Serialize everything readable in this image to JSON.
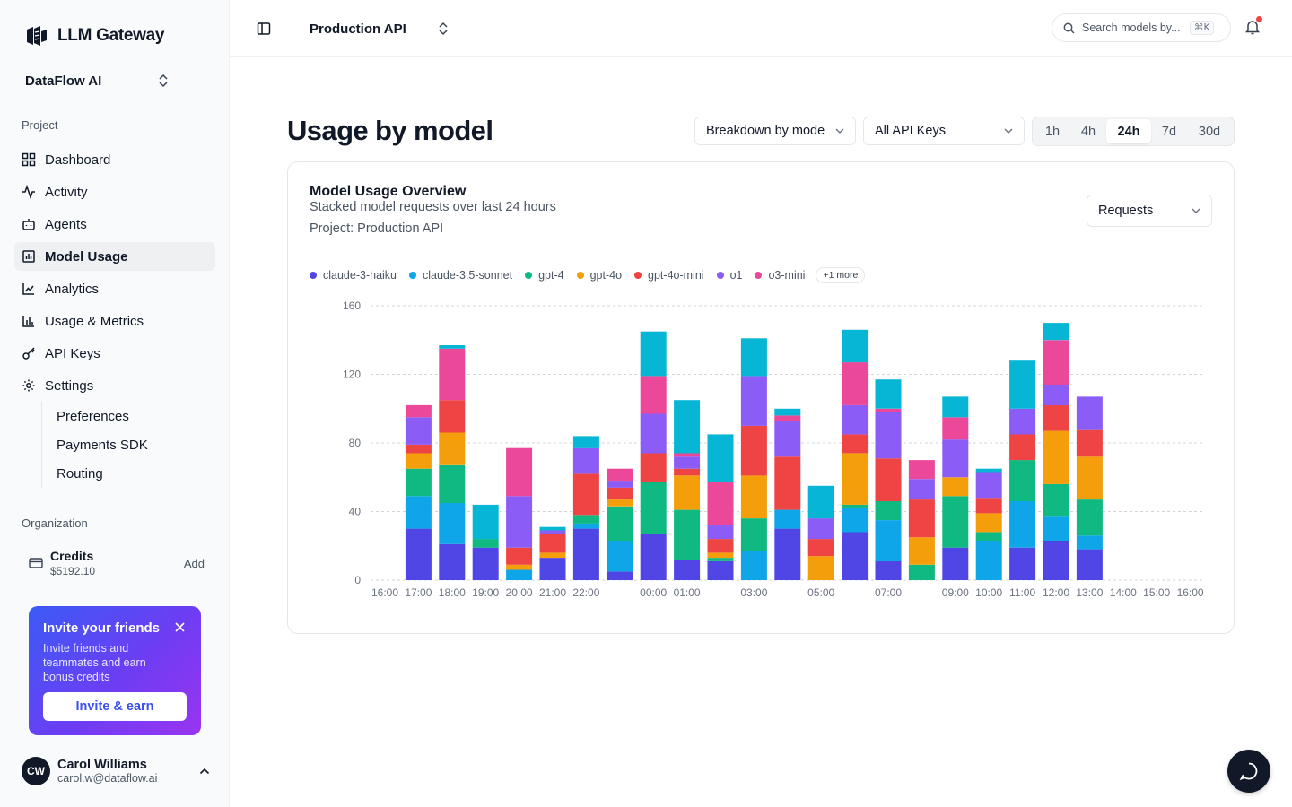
{
  "brand": {
    "name": "LLM Gateway",
    "icon": "gateway-logo-icon"
  },
  "org": {
    "name": "DataFlow AI"
  },
  "sidebar": {
    "project_label": "Project",
    "items": [
      {
        "label": "Dashboard",
        "icon": "grid-icon"
      },
      {
        "label": "Activity",
        "icon": "activity-icon"
      },
      {
        "label": "Agents",
        "icon": "bot-icon"
      },
      {
        "label": "Model Usage",
        "icon": "bar-chart-icon",
        "active": true
      },
      {
        "label": "Analytics",
        "icon": "line-chart-icon"
      },
      {
        "label": "Usage & Metrics",
        "icon": "bar-chart-2-icon"
      },
      {
        "label": "API Keys",
        "icon": "key-icon"
      },
      {
        "label": "Settings",
        "icon": "gear-icon"
      }
    ],
    "settings_sub": [
      "Preferences",
      "Payments SDK",
      "Routing"
    ],
    "org_label": "Organization",
    "credits": {
      "title": "Credits",
      "value": "$5192.10",
      "action": "Add"
    },
    "invite": {
      "title": "Invite your friends",
      "text": "Invite friends and teammates and earn bonus credits",
      "button": "Invite & earn"
    },
    "user": {
      "initials": "CW",
      "name": "Carol Williams",
      "email": "carol.w@dataflow.ai"
    }
  },
  "header": {
    "project": "Production API",
    "search_placeholder": "Search models by...",
    "search_shortcut": "⌘K"
  },
  "main": {
    "title": "Usage by model",
    "breakdown": "Breakdown by model",
    "api_keys": "All API Keys",
    "ranges": [
      "1h",
      "4h",
      "24h",
      "7d",
      "30d"
    ],
    "active_range": "24h"
  },
  "card": {
    "title": "Model Usage Overview",
    "subtitle": "Stacked model requests over last 24 hours",
    "project_line": "Project: Production API",
    "metric": "Requests",
    "more_label": "+1 more"
  },
  "chart_data": {
    "type": "bar",
    "stacked": true,
    "ylim": [
      0,
      160
    ],
    "yticks": [
      0,
      40,
      80,
      120,
      160
    ],
    "grid": true,
    "legend_position": "top-left",
    "tick_labels": [
      "16:00",
      "17:00",
      "18:00",
      "19:00",
      "20:00",
      "21:00",
      "22:00",
      "00:00",
      "01:00",
      "03:00",
      "05:00",
      "07:00",
      "09:00",
      "10:00",
      "11:00",
      "12:00",
      "13:00",
      "14:00",
      "15:00",
      "16:00"
    ],
    "tick_slots": [
      0,
      1,
      2,
      3,
      4,
      5,
      6,
      8,
      9,
      11,
      13,
      15,
      17,
      18,
      19,
      20,
      21,
      22,
      23,
      24
    ],
    "slots": 25,
    "bar_slots": [
      1,
      2,
      3,
      4,
      5,
      6,
      7,
      8,
      9,
      10,
      11,
      12,
      13,
      14,
      15,
      16,
      17,
      18,
      19,
      20,
      21
    ],
    "series": [
      {
        "name": "claude-3-haiku",
        "color": "#4f46e5",
        "values": [
          30,
          21,
          19,
          0,
          13,
          30,
          5,
          27,
          12,
          11,
          0,
          30,
          0,
          28,
          11,
          0,
          19,
          0,
          19,
          23,
          18
        ]
      },
      {
        "name": "claude-3.5-sonnet",
        "color": "#0ea5e9",
        "values": [
          19,
          24,
          0,
          6,
          0,
          3,
          18,
          0,
          0,
          0,
          17,
          11,
          0,
          14,
          24,
          0,
          0,
          23,
          27,
          14,
          8
        ]
      },
      {
        "name": "gpt-4",
        "color": "#10b981",
        "values": [
          16,
          22,
          5,
          0,
          0,
          5,
          20,
          30,
          29,
          2,
          19,
          0,
          0,
          2,
          11,
          9,
          30,
          5,
          24,
          19,
          21
        ]
      },
      {
        "name": "gpt-4o",
        "color": "#f59e0b",
        "values": [
          9,
          19,
          0,
          3,
          3,
          0,
          4,
          0,
          20,
          3,
          25,
          0,
          14,
          30,
          0,
          16,
          11,
          11,
          0,
          31,
          25
        ]
      },
      {
        "name": "gpt-4o-mini",
        "color": "#ef4444",
        "values": [
          5,
          19,
          0,
          10,
          11,
          24,
          7,
          17,
          4,
          8,
          29,
          31,
          10,
          11,
          25,
          22,
          0,
          9,
          15,
          15,
          16
        ]
      },
      {
        "name": "o1",
        "color": "#8b5cf6",
        "values": [
          16,
          0,
          0,
          30,
          2,
          15,
          4,
          23,
          7,
          8,
          29,
          21,
          12,
          17,
          27,
          12,
          22,
          15,
          15,
          12,
          19
        ]
      },
      {
        "name": "o3-mini",
        "color": "#ec4899",
        "values": [
          7,
          30,
          0,
          28,
          0,
          0,
          7,
          22,
          2,
          25,
          0,
          3,
          0,
          25,
          2,
          11,
          13,
          0,
          0,
          26,
          0
        ]
      },
      {
        "name": "",
        "color": "#06b6d4",
        "values": [
          0,
          2,
          20,
          0,
          2,
          7,
          0,
          26,
          31,
          28,
          22,
          4,
          19,
          19,
          17,
          0,
          12,
          2,
          28,
          10,
          0
        ]
      }
    ]
  }
}
